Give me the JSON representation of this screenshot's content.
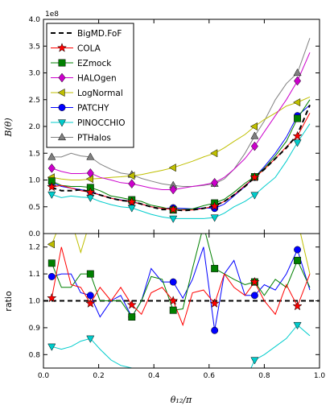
{
  "chart_data": {
    "type": "line",
    "x": [
      0.03,
      0.065,
      0.1,
      0.135,
      0.17,
      0.205,
      0.245,
      0.28,
      0.32,
      0.355,
      0.39,
      0.43,
      0.47,
      0.505,
      0.54,
      0.58,
      0.62,
      0.655,
      0.69,
      0.73,
      0.765,
      0.8,
      0.84,
      0.88,
      0.92,
      0.965
    ],
    "marker_x": [
      0.03,
      0.17,
      0.32,
      0.47,
      0.62,
      0.765,
      0.92
    ],
    "xlabel": "θ₁₂/π",
    "xlim": [
      0.0,
      1.0
    ],
    "xticks": [
      "0.0",
      "0.2",
      "0.4",
      "0.6",
      "0.8",
      "1.0"
    ],
    "top_panel": {
      "ylabel": "B(θ)",
      "scale_label": "1e8",
      "ylim": [
        0.0,
        4.0
      ],
      "yticks": [
        "0.0",
        "0.5",
        "1.0",
        "1.5",
        "2.0",
        "2.5",
        "3.0",
        "3.5",
        "4.0"
      ]
    },
    "bottom_panel": {
      "ylabel": "ratio",
      "ylim": [
        0.75,
        1.25
      ],
      "yticks": [
        "0.8",
        "0.9",
        "1.0",
        "1.1",
        "1.2"
      ],
      "reference_line": 1.0
    },
    "series": [
      {
        "name": "BigMD.FoF",
        "color": "#000000",
        "style": "dashed",
        "marker": "none",
        "values": [
          0.86,
          0.8,
          0.8,
          0.82,
          0.78,
          0.72,
          0.66,
          0.62,
          0.6,
          0.55,
          0.5,
          0.45,
          0.45,
          0.43,
          0.44,
          0.47,
          0.52,
          0.6,
          0.72,
          0.88,
          1.05,
          1.2,
          1.4,
          1.6,
          1.85,
          2.4
        ],
        "ratio": []
      },
      {
        "name": "COLA",
        "color": "#ff0000",
        "style": "solid",
        "marker": "star",
        "values": [
          0.87,
          0.9,
          0.85,
          0.8,
          0.77,
          0.72,
          0.66,
          0.62,
          0.59,
          0.55,
          0.5,
          0.47,
          0.45,
          0.44,
          0.44,
          0.47,
          0.51,
          0.6,
          0.72,
          0.9,
          1.05,
          1.2,
          1.4,
          1.62,
          1.82,
          2.25
        ],
        "ratio": [
          1.01,
          1.2,
          1.06,
          1.05,
          0.99,
          1.05,
          1.0,
          1.05,
          0.985,
          0.95,
          1.03,
          1.05,
          1.0,
          0.91,
          1.03,
          1.04,
          0.99,
          1.1,
          1.05,
          1.02,
          1.07,
          1.0,
          0.95,
          1.06,
          0.98,
          1.1
        ]
      },
      {
        "name": "EZmock",
        "color": "#008000",
        "style": "solid",
        "marker": "square",
        "values": [
          0.98,
          0.9,
          0.88,
          0.88,
          0.86,
          0.8,
          0.7,
          0.67,
          0.63,
          0.6,
          0.53,
          0.49,
          0.44,
          0.45,
          0.46,
          0.52,
          0.57,
          0.64,
          0.77,
          0.94,
          1.06,
          1.22,
          1.45,
          1.72,
          2.15,
          2.5
        ],
        "ratio": [
          1.14,
          1.05,
          1.05,
          1.1,
          1.1,
          1.0,
          1.0,
          1.0,
          0.94,
          1.0,
          1.09,
          1.08,
          0.965,
          0.97,
          1.12,
          1.28,
          1.12,
          1.1,
          1.08,
          1.06,
          1.07,
          1.02,
          1.08,
          1.05,
          1.15,
          1.05
        ]
      },
      {
        "name": "HALOgen",
        "color": "#cc00cc",
        "style": "solid",
        "marker": "diamond",
        "values": [
          1.22,
          1.16,
          1.12,
          1.12,
          1.13,
          1.05,
          1.0,
          0.95,
          0.93,
          0.89,
          0.85,
          0.82,
          0.82,
          0.85,
          0.88,
          0.91,
          0.95,
          1.05,
          1.2,
          1.4,
          1.63,
          1.9,
          2.2,
          2.5,
          2.85,
          3.38
        ],
        "ratio": []
      },
      {
        "name": "LogNormal",
        "color": "#bfbf00",
        "style": "solid",
        "marker": "triangle-left",
        "values": [
          1.05,
          1.02,
          1.0,
          1.0,
          1.02,
          1.03,
          1.05,
          1.06,
          1.08,
          1.1,
          1.14,
          1.18,
          1.23,
          1.29,
          1.35,
          1.43,
          1.5,
          1.6,
          1.72,
          1.85,
          2.0,
          2.13,
          2.25,
          2.38,
          2.45,
          2.55
        ],
        "ratio": [
          1.21,
          1.3,
          1.3,
          1.18,
          1.3,
          1.3,
          1.3,
          1.3,
          1.3,
          1.3,
          1.3,
          1.3,
          1.3,
          1.3,
          1.3,
          1.3,
          1.3,
          1.3,
          1.3,
          1.3,
          1.3,
          1.3,
          1.3,
          1.3,
          1.3,
          1.1
        ]
      },
      {
        "name": "PATCHY",
        "color": "#0000ff",
        "style": "solid",
        "marker": "circle",
        "values": [
          0.95,
          0.88,
          0.85,
          0.82,
          0.79,
          0.72,
          0.66,
          0.63,
          0.6,
          0.55,
          0.5,
          0.47,
          0.48,
          0.47,
          0.46,
          0.48,
          0.47,
          0.55,
          0.7,
          0.88,
          1.05,
          1.25,
          1.5,
          1.8,
          2.2,
          2.4
        ],
        "ratio": [
          1.09,
          1.1,
          1.1,
          1.03,
          1.02,
          0.94,
          1.0,
          1.02,
          0.94,
          1.0,
          1.12,
          1.07,
          1.07,
          1.01,
          1.08,
          1.2,
          0.89,
          1.1,
          1.15,
          1.02,
          1.02,
          1.06,
          1.04,
          1.1,
          1.19,
          1.04
        ]
      },
      {
        "name": "PINOCCHIO",
        "color": "#00cccc",
        "style": "solid",
        "marker": "triangle-down",
        "values": [
          0.73,
          0.67,
          0.7,
          0.68,
          0.67,
          0.6,
          0.54,
          0.5,
          0.48,
          0.42,
          0.36,
          0.31,
          0.28,
          0.28,
          0.28,
          0.28,
          0.3,
          0.38,
          0.5,
          0.6,
          0.72,
          0.88,
          1.05,
          1.35,
          1.7,
          2.05
        ],
        "ratio": [
          0.83,
          0.82,
          0.83,
          0.85,
          0.86,
          0.82,
          0.78,
          0.76,
          0.75,
          0.72,
          0.72,
          0.7,
          0.7,
          0.7,
          0.7,
          0.7,
          0.7,
          0.7,
          0.7,
          0.7,
          0.78,
          0.8,
          0.83,
          0.86,
          0.91,
          0.87
        ]
      },
      {
        "name": "PTHalos",
        "color": "#808080",
        "style": "solid",
        "marker": "triangle-up",
        "values": [
          1.43,
          1.43,
          1.5,
          1.45,
          1.43,
          1.3,
          1.2,
          1.13,
          1.1,
          1.03,
          0.98,
          0.93,
          0.9,
          0.88,
          0.88,
          0.9,
          0.93,
          1.02,
          1.2,
          1.5,
          1.82,
          2.1,
          2.5,
          2.8,
          3.0,
          3.65
        ],
        "ratio": []
      }
    ]
  }
}
